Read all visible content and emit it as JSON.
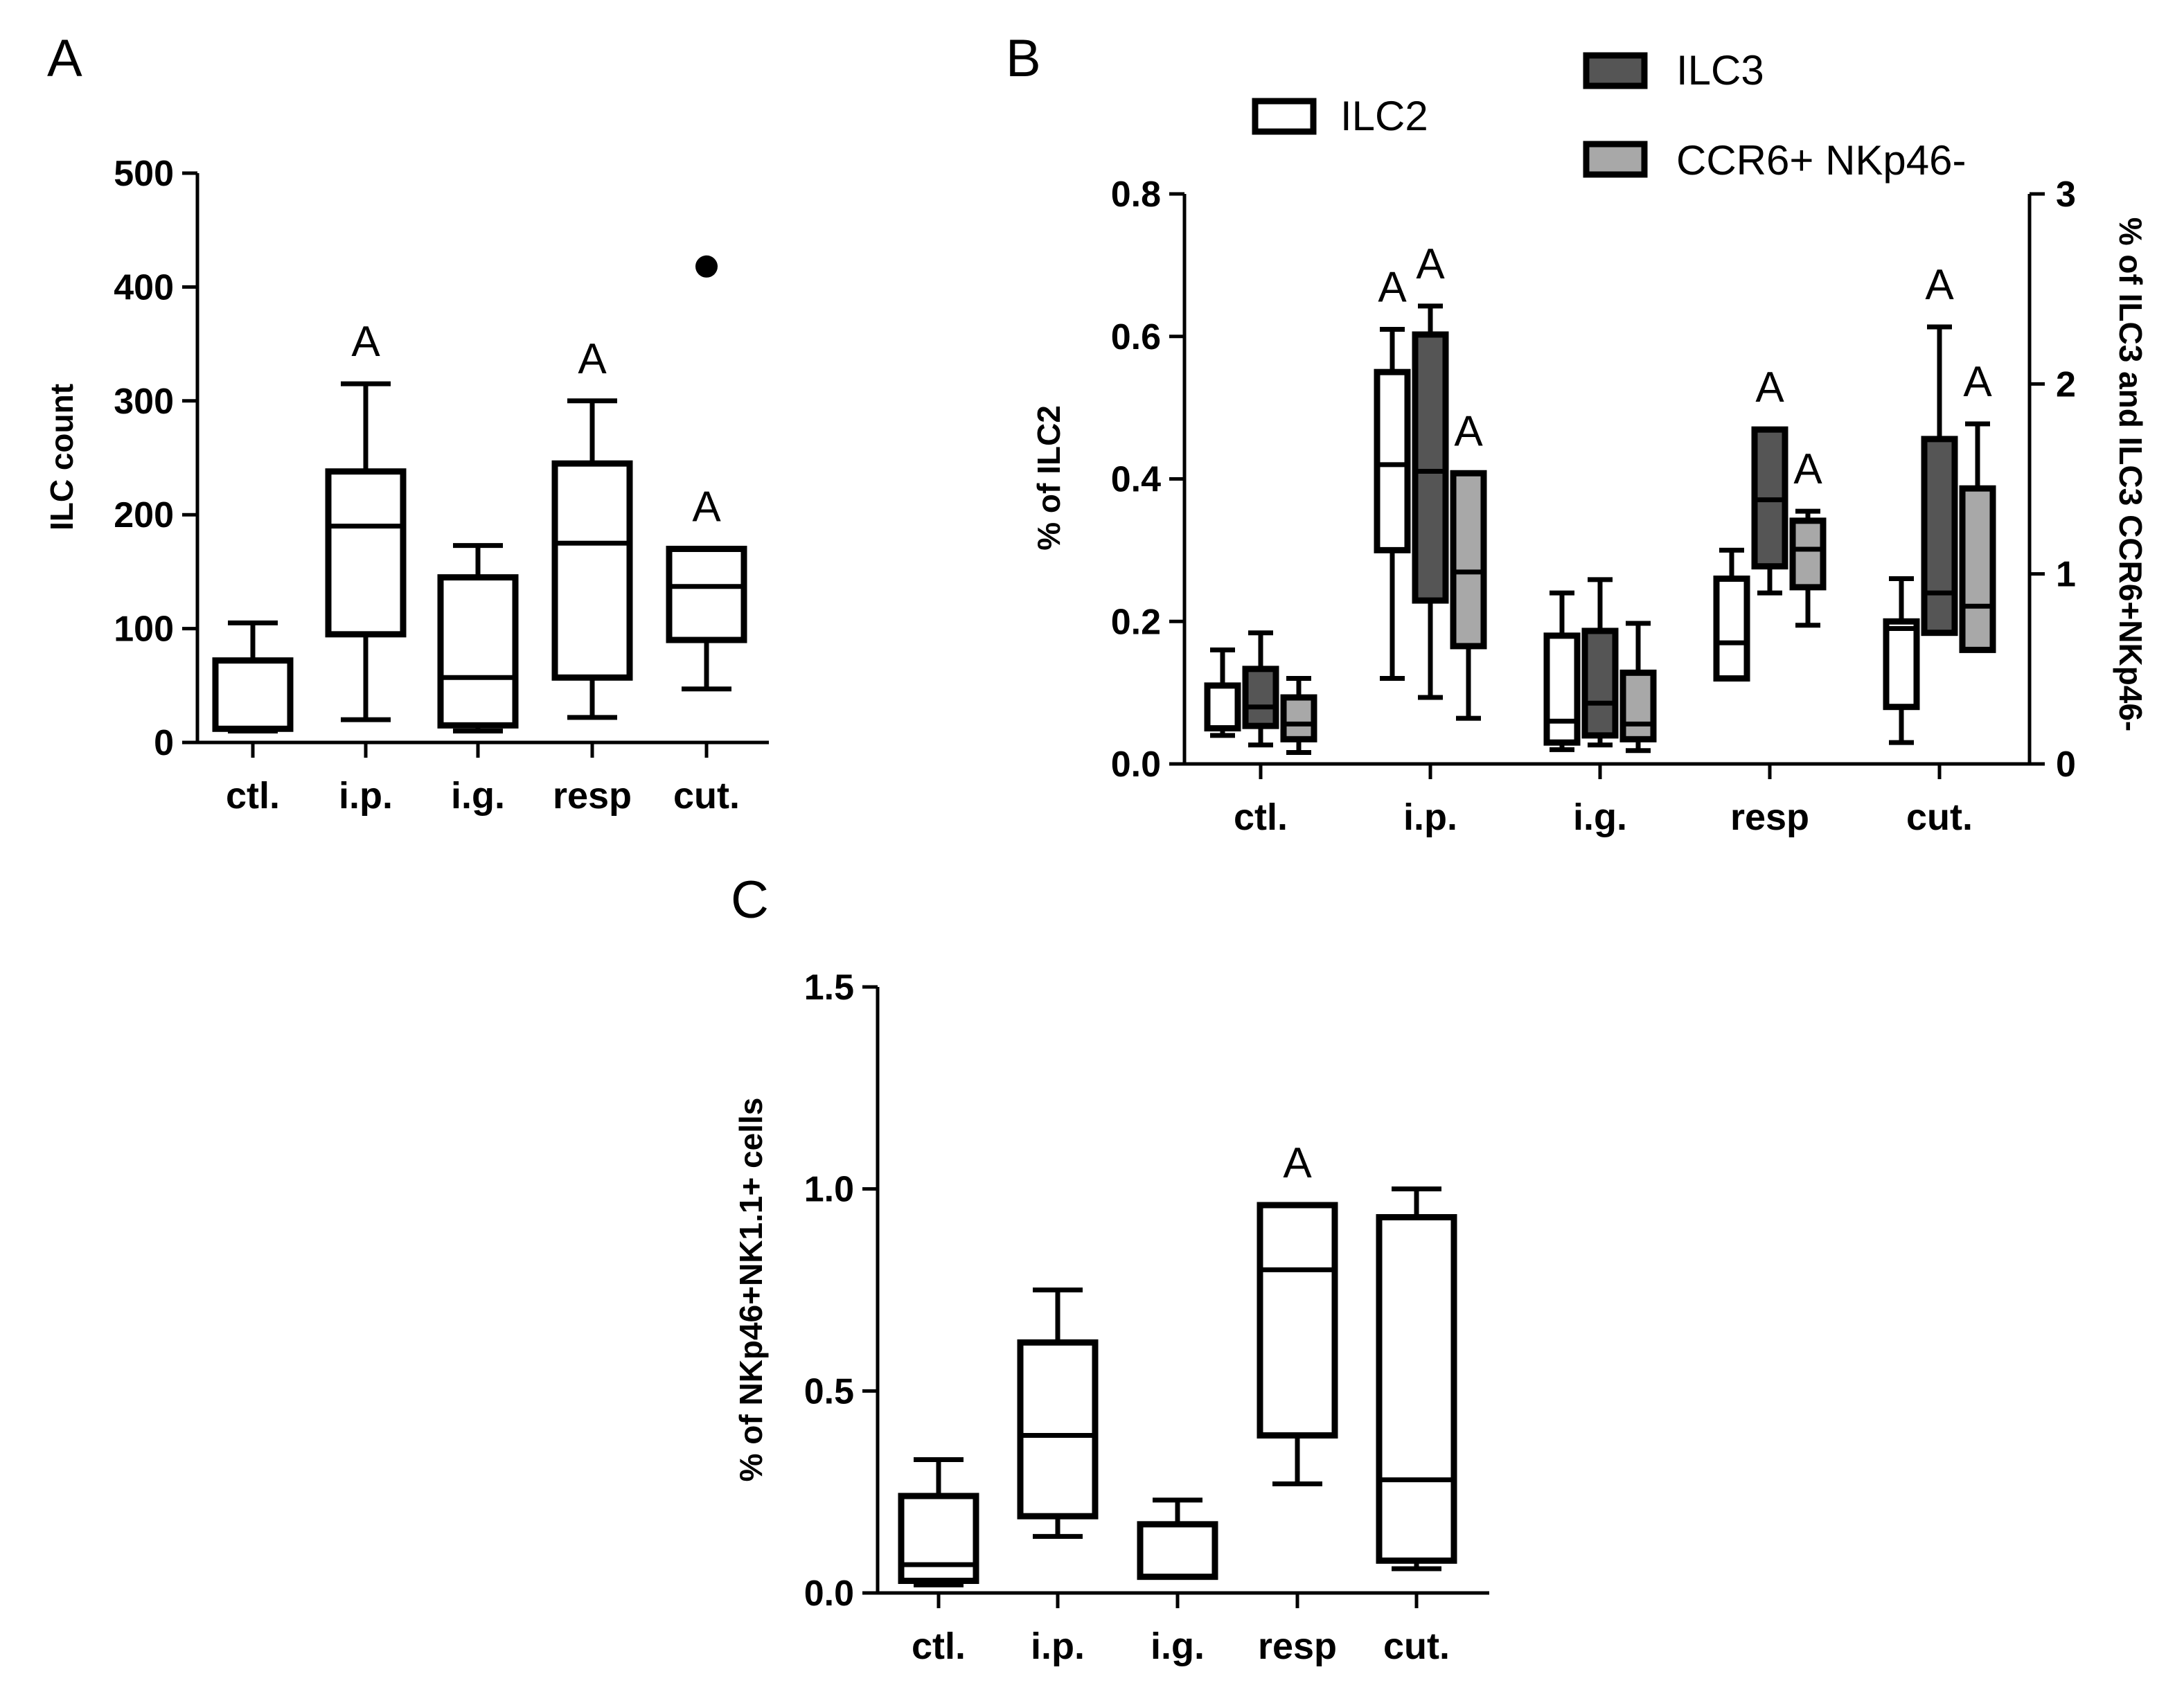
{
  "colors": {
    "ILC2": "#ffffff",
    "ILC3": "#555555",
    "CCR6+ NKp46-": "#a8a8a8",
    "outlier": "#000000"
  },
  "chart_data": [
    {
      "panel": "A",
      "type": "box",
      "ylabel": "ILC count",
      "ylim": [
        0,
        500
      ],
      "yticks": [
        "0",
        "100",
        "200",
        "300",
        "400",
        "500"
      ],
      "categories": [
        "ctl.",
        "i.p.",
        "i.g.",
        "resp",
        "cut."
      ],
      "series": [
        {
          "name": "ILC count",
          "boxes": [
            {
              "min": 10,
              "q1": 12,
              "median": 12,
              "q3": 72,
              "max": 105,
              "sig": ""
            },
            {
              "min": 20,
              "q1": 95,
              "median": 190,
              "q3": 238,
              "max": 315,
              "sig": "A"
            },
            {
              "min": 10,
              "q1": 15,
              "median": 57,
              "q3": 145,
              "max": 173,
              "sig": ""
            },
            {
              "min": 22,
              "q1": 57,
              "median": 175,
              "q3": 245,
              "max": 300,
              "sig": "A"
            },
            {
              "min": 47,
              "q1": 90,
              "median": 137,
              "q3": 170,
              "max": 170,
              "sig": "A",
              "outliers": [
                418
              ]
            }
          ]
        }
      ]
    },
    {
      "panel": "B",
      "type": "box",
      "ylabel": "% of ILC2",
      "ylim": [
        0,
        0.8
      ],
      "yticks": [
        "0.0",
        "0.2",
        "0.4",
        "0.6",
        "0.8"
      ],
      "y2label": "% of ILC3 and ILC3 CCR6+NKp46-",
      "y2lim": [
        0,
        3
      ],
      "y2ticks": [
        "0",
        "1",
        "2",
        "3"
      ],
      "categories": [
        "ctl.",
        "i.p.",
        "i.g.",
        "resp",
        "cut."
      ],
      "legend": [
        "ILC2",
        "ILC3",
        "CCR6+ NKp46-"
      ],
      "series": [
        {
          "name": "ILC2",
          "axis": "left",
          "boxes": [
            {
              "min": 0.04,
              "q1": 0.05,
              "median": 0.05,
              "q3": 0.11,
              "max": 0.16,
              "sig": ""
            },
            {
              "min": 0.12,
              "q1": 0.3,
              "median": 0.42,
              "q3": 0.55,
              "max": 0.61,
              "sig": "A"
            },
            {
              "min": 0.02,
              "q1": 0.03,
              "median": 0.06,
              "q3": 0.18,
              "max": 0.24,
              "sig": ""
            },
            {
              "min": 0.12,
              "q1": 0.12,
              "median": 0.17,
              "q3": 0.26,
              "max": 0.3,
              "sig": ""
            },
            {
              "min": 0.03,
              "q1": 0.08,
              "median": 0.19,
              "q3": 0.2,
              "max": 0.26,
              "sig": ""
            }
          ]
        },
        {
          "name": "ILC3",
          "axis": "right",
          "boxes": [
            {
              "min": 0.1,
              "q1": 0.2,
              "median": 0.3,
              "q3": 0.5,
              "max": 0.69,
              "sig": ""
            },
            {
              "min": 0.35,
              "q1": 0.86,
              "median": 1.54,
              "q3": 2.26,
              "max": 2.41,
              "sig": "A"
            },
            {
              "min": 0.1,
              "q1": 0.15,
              "median": 0.32,
              "q3": 0.7,
              "max": 0.97,
              "sig": ""
            },
            {
              "min": 0.9,
              "q1": 1.04,
              "median": 1.39,
              "q3": 1.76,
              "max": 1.76,
              "sig": "A"
            },
            {
              "min": 0.69,
              "q1": 0.69,
              "median": 0.9,
              "q3": 1.71,
              "max": 2.3,
              "sig": "A"
            }
          ]
        },
        {
          "name": "CCR6+ NKp46-",
          "axis": "right",
          "boxes": [
            {
              "min": 0.06,
              "q1": 0.13,
              "median": 0.21,
              "q3": 0.35,
              "max": 0.45,
              "sig": ""
            },
            {
              "min": 0.24,
              "q1": 0.62,
              "median": 1.01,
              "q3": 1.53,
              "max": 1.53,
              "sig": "A"
            },
            {
              "min": 0.07,
              "q1": 0.13,
              "median": 0.21,
              "q3": 0.48,
              "max": 0.74,
              "sig": ""
            },
            {
              "min": 0.73,
              "q1": 0.93,
              "median": 1.13,
              "q3": 1.28,
              "max": 1.33,
              "sig": "A"
            },
            {
              "min": 0.6,
              "q1": 0.6,
              "median": 0.83,
              "q3": 1.45,
              "max": 1.79,
              "sig": "A"
            }
          ]
        }
      ]
    },
    {
      "panel": "C",
      "type": "box",
      "ylabel": "% of NKp46+NK1.1+ cells",
      "ylim": [
        0,
        1.5
      ],
      "yticks": [
        "0.0",
        "0.5",
        "1.0",
        "1.5"
      ],
      "categories": [
        "ctl.",
        "i.p.",
        "i.g.",
        "resp",
        "cut."
      ],
      "series": [
        {
          "name": "NKp46+NK1.1+",
          "boxes": [
            {
              "min": 0.02,
              "q1": 0.03,
              "median": 0.07,
              "q3": 0.24,
              "max": 0.33,
              "sig": ""
            },
            {
              "min": 0.14,
              "q1": 0.19,
              "median": 0.39,
              "q3": 0.62,
              "max": 0.75,
              "sig": ""
            },
            {
              "min": 0.04,
              "q1": 0.04,
              "median": 0.04,
              "q3": 0.17,
              "max": 0.23,
              "sig": ""
            },
            {
              "min": 0.27,
              "q1": 0.39,
              "median": 0.8,
              "q3": 0.96,
              "max": 0.96,
              "sig": "A"
            },
            {
              "min": 0.06,
              "q1": 0.08,
              "median": 0.28,
              "q3": 0.93,
              "max": 1.0,
              "sig": ""
            }
          ]
        }
      ]
    }
  ]
}
